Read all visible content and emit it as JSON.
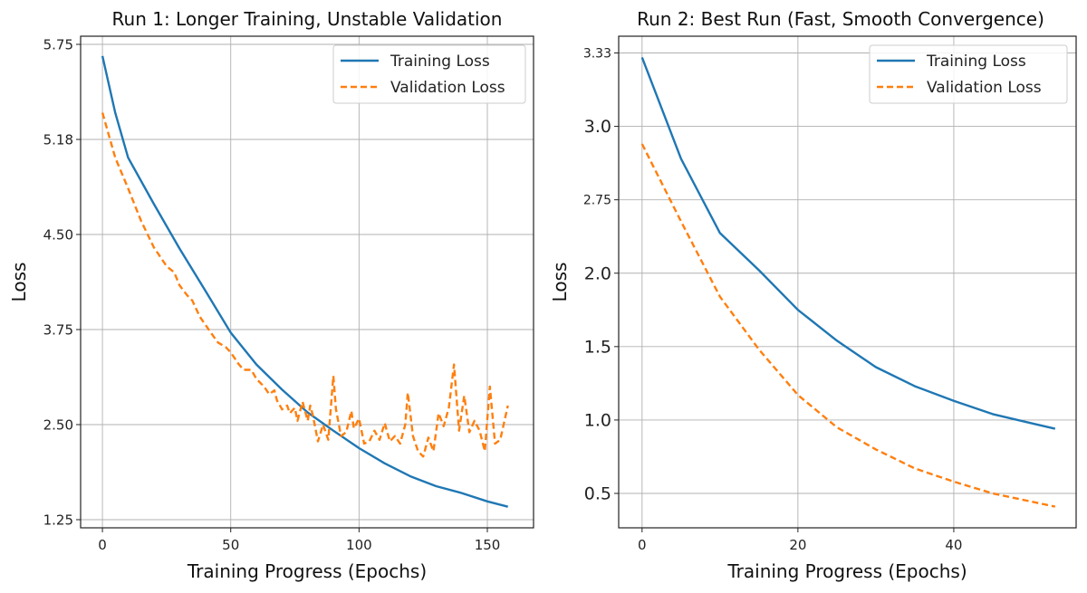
{
  "chart_data": [
    {
      "type": "line",
      "title": "Run 1: Longer Training, Unstable Validation",
      "xlabel": "Training Progress (Epochs)",
      "ylabel": "Loss",
      "xlim": [
        -8.5,
        168
      ],
      "xticks": [
        "0",
        "50",
        "100",
        "150"
      ],
      "yticks": [
        "1.25",
        "2.50",
        "3.75",
        "4.50",
        "5.18",
        "5.75"
      ],
      "grid": true,
      "legend_position": "top-right",
      "series": [
        {
          "name": "Training Loss",
          "color": "#1f77b4",
          "style": "solid",
          "x": [
            0,
            5,
            10,
            20,
            30,
            40,
            50,
            60,
            70,
            80,
            90,
            100,
            110,
            120,
            130,
            140,
            150,
            158
          ],
          "y": [
            5.68,
            5.34,
            5.05,
            4.72,
            4.39,
            4.06,
            3.71,
            3.29,
            2.96,
            2.66,
            2.42,
            2.19,
            1.99,
            1.82,
            1.69,
            1.6,
            1.49,
            1.42
          ]
        },
        {
          "name": "Validation Loss",
          "color": "#ff7f0e",
          "style": "dashed",
          "x": [
            0,
            5,
            10,
            15,
            20,
            25,
            28,
            30,
            33,
            35,
            38,
            42,
            45,
            48,
            50,
            53,
            55,
            58,
            60,
            63,
            65,
            67,
            68,
            70,
            72,
            73,
            75,
            76,
            78,
            80,
            81,
            82,
            84,
            86,
            88,
            90,
            91,
            93,
            95,
            97,
            98,
            100,
            102,
            104,
            106,
            108,
            110,
            112,
            114,
            116,
            118,
            119,
            121,
            123,
            125,
            127,
            129,
            131,
            133,
            135,
            137,
            139,
            141,
            143,
            145,
            147,
            149,
            151,
            153,
            155,
            158
          ],
          "y": [
            5.34,
            5.05,
            4.83,
            4.6,
            4.4,
            4.25,
            4.2,
            4.1,
            4.02,
            3.98,
            3.85,
            3.72,
            3.58,
            3.52,
            3.45,
            3.3,
            3.22,
            3.22,
            3.1,
            3.0,
            2.9,
            2.95,
            2.82,
            2.7,
            2.75,
            2.65,
            2.72,
            2.55,
            2.8,
            2.55,
            2.75,
            2.62,
            2.28,
            2.5,
            2.3,
            3.14,
            2.7,
            2.35,
            2.4,
            2.68,
            2.45,
            2.58,
            2.25,
            2.28,
            2.42,
            2.3,
            2.52,
            2.28,
            2.35,
            2.25,
            2.5,
            2.92,
            2.35,
            2.15,
            2.08,
            2.33,
            2.15,
            2.65,
            2.48,
            2.72,
            3.29,
            2.42,
            2.88,
            2.4,
            2.55,
            2.42,
            2.15,
            3.0,
            2.25,
            2.3,
            2.75
          ]
        }
      ]
    },
    {
      "type": "line",
      "title": "Run 2: Best Run (Fast, Smooth Convergence)",
      "xlabel": "Training Progress (Epochs)",
      "ylabel": "Loss",
      "xlim": [
        -3,
        55.7
      ],
      "xticks": [
        "0",
        "20",
        "40"
      ],
      "yticks": [
        "0.5",
        "1.0",
        "1.5",
        "2.0",
        "2.75",
        "3.0",
        "3.33"
      ],
      "grid": true,
      "legend_position": "top-right",
      "series": [
        {
          "name": "Training Loss",
          "color": "#1f77b4",
          "style": "solid",
          "x": [
            0,
            5,
            10,
            15,
            20,
            25,
            30,
            35,
            40,
            45,
            53
          ],
          "y": [
            3.31,
            2.89,
            2.41,
            2.03,
            1.75,
            1.54,
            1.36,
            1.23,
            1.13,
            1.04,
            0.94
          ]
        },
        {
          "name": "Validation Loss",
          "color": "#ff7f0e",
          "style": "dashed",
          "x": [
            0,
            5,
            10,
            15,
            20,
            25,
            30,
            35,
            40,
            45,
            53
          ],
          "y": [
            2.94,
            2.53,
            1.84,
            1.48,
            1.17,
            0.95,
            0.8,
            0.67,
            0.58,
            0.5,
            0.41
          ]
        }
      ]
    }
  ]
}
